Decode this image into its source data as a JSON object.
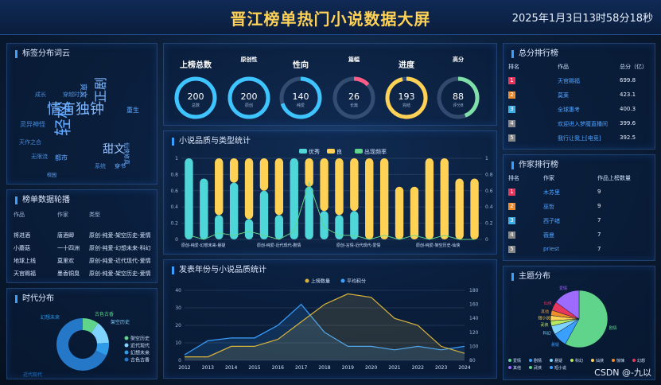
{
  "header": {
    "title": "晋江榜单热门小说数据大屏",
    "clock": "2025年1月3日13时58分18秒"
  },
  "tag_cloud": {
    "title": "标签分布词云",
    "words": [
      "情有独钟",
      "轻松",
      "正剧",
      "甜文",
      "灵异神怪",
      "爽文",
      "天作之合",
      "无限流",
      "仙侠修真",
      "都市",
      "系统",
      "校园",
      "穿越时空",
      "重生",
      "成长",
      "穿书"
    ]
  },
  "rotation": {
    "title": "榜单数据轮播",
    "headers": [
      "作品",
      "作家",
      "类型"
    ],
    "rows": [
      [
        "将进酒",
        "唐酒卿",
        "原创-纯爱-架空历史-爱情"
      ],
      [
        "小蘑菇",
        "一十四洲",
        "原创-纯爱-幻想未来-科幻"
      ],
      [
        "地球上线",
        "莫里欢",
        "原创-纯爱-近代现代-爱情"
      ],
      [
        "天官赐福",
        "墨香铜臭",
        "原创-纯爱-架空历史-爱情"
      ]
    ]
  },
  "era": {
    "title": "时代分布",
    "labels": [
      "古色古香",
      "架空历史",
      "幻想未来",
      "近代现代"
    ],
    "legend": [
      "架空历史",
      "近代现代",
      "幻想未来",
      "古色古香"
    ],
    "values": [
      10,
      14,
      8,
      68
    ],
    "colors": [
      "#5fd48a",
      "#7fd3ff",
      "#2f9ae8",
      "#2577c8"
    ]
  },
  "gauges": [
    {
      "title": "上榜总数",
      "value": "200",
      "sub": "总数",
      "pct": 1.0,
      "color": "#3ec4ff"
    },
    {
      "title": "原创性",
      "value": "200",
      "sub": "原创",
      "pct": 1.0,
      "color": "#3ec4ff"
    },
    {
      "title": "性向",
      "value": "140",
      "sub": "纯爱",
      "pct": 0.7,
      "color": "#3ec4ff"
    },
    {
      "title": "篇幅",
      "value": "26",
      "sub": "长篇",
      "pct": 0.13,
      "color": "#ff5d86"
    },
    {
      "title": "进度",
      "value": "193",
      "sub": "完结",
      "pct": 0.965,
      "color": "#ffd256"
    },
    {
      "title": "高分",
      "value": "88",
      "sub": "评分8",
      "pct": 0.44,
      "color": "#7ee0a8"
    }
  ],
  "quality": {
    "title": "小说品质与类型统计",
    "legend": [
      "优秀",
      "良",
      "出现频率"
    ],
    "xlabels": [
      "原创-纯爱-幻想未来-悬疑",
      "原创-纯爱-近代现代-剧情",
      "原创-言情-近代现代-爱情",
      "原创-纯爱-架空历史-仙侠"
    ],
    "yticks": [
      "0",
      "0.2",
      "0.4",
      "0.6",
      "0.8",
      "1"
    ]
  },
  "chart_data": [
    {
      "type": "bar",
      "title": "小说品质与类型统计",
      "series": [
        {
          "name": "优秀",
          "values": [
            1.0,
            0.75,
            0.3,
            0.7,
            0.25,
            0.6,
            0.3,
            1.0,
            0.65,
            0.35,
            0.3,
            0.35,
            0.0,
            0.0,
            0.0,
            0.0,
            0.0,
            0.0,
            0.0,
            0.0
          ]
        },
        {
          "name": "良",
          "values": [
            0.0,
            0.0,
            0.7,
            0.3,
            0.75,
            0.4,
            0.7,
            0.0,
            0.35,
            0.65,
            0.7,
            0.65,
            1.0,
            1.0,
            0.65,
            0.65,
            1.0,
            1.0,
            0.75,
            0.75
          ]
        },
        {
          "name": "出现频率",
          "values": [
            0.05,
            0.0,
            0.08,
            0.05,
            0.1,
            0.05,
            0.0,
            0.1,
            0.7,
            0.15,
            0.05,
            0.05,
            0.0,
            0.05,
            0.0,
            0.05,
            0.0,
            0.05,
            0.0,
            0.0
          ]
        }
      ],
      "ylim": [
        0,
        1
      ]
    },
    {
      "type": "line",
      "title": "发表年份与小说品质统计",
      "x": [
        "2012",
        "2013",
        "2014",
        "2015",
        "2016",
        "2017",
        "2018",
        "2019",
        "2020",
        "2021",
        "2022",
        "2023",
        "2024"
      ],
      "series": [
        {
          "name": "上榜数量",
          "values": [
            2,
            2,
            8,
            8,
            12,
            22,
            32,
            38,
            36,
            24,
            20,
            8,
            4
          ]
        },
        {
          "name": "平均积分",
          "values": [
            88,
            108,
            112,
            112,
            130,
            160,
            120,
            100,
            100,
            95,
            100,
            95,
            100
          ]
        }
      ]
    }
  ],
  "pubyear": {
    "title": "发表年份与小说品质统计",
    "legend": [
      "上榜数量",
      "平均积分"
    ],
    "yleft": [
      "0",
      "10",
      "20",
      "30",
      "40"
    ],
    "yright": [
      "80",
      "100",
      "120",
      "140",
      "160",
      "180"
    ]
  },
  "total_rank": {
    "title": "总分排行榜",
    "headers": [
      "排名",
      "作品",
      "总分（亿）"
    ],
    "rows": [
      [
        "1",
        "天官赐福",
        "699.8"
      ],
      [
        "2",
        "莫莱",
        "423.1"
      ],
      [
        "3",
        "全球惠考",
        "400.3"
      ],
      [
        "4",
        "欢迎进入梦魇直播间",
        "399.6"
      ],
      [
        "5",
        "我行让我上[电竞]",
        "392.5"
      ]
    ],
    "colors": [
      "#e8365d",
      "#f08c2a",
      "#3ab0e8",
      "#888",
      "#888"
    ]
  },
  "author_rank": {
    "title": "作家排行榜",
    "headers": [
      "排名",
      "作家",
      "作品上榜数量"
    ],
    "rows": [
      [
        "1",
        "木苏里",
        "9"
      ],
      [
        "2",
        "巫哲",
        "9"
      ],
      [
        "3",
        "西子绪",
        "7"
      ],
      [
        "4",
        "薇曼",
        "7"
      ],
      [
        "5",
        "priest",
        "7"
      ]
    ]
  },
  "theme": {
    "title": "主题分布",
    "legend": [
      "爱情",
      "剧情",
      "悬疑",
      "科幻",
      "仙侠",
      "惊悚",
      "幻想",
      "其他",
      "武侠",
      "短小说"
    ],
    "labels": [
      "剧情",
      "悬疑",
      "科幻",
      "武侠",
      "短小说",
      "其他",
      "仙侠",
      "爱情"
    ],
    "values": [
      58,
      8,
      5,
      3,
      3,
      3,
      5,
      15
    ],
    "colors": [
      "#5fd48a",
      "#3aa0ff",
      "#7fd3ff",
      "#b9e85c",
      "#ffd256",
      "#f08c2a",
      "#e8365d",
      "#9d6bff"
    ]
  },
  "watermark": "CSDN @-九以"
}
